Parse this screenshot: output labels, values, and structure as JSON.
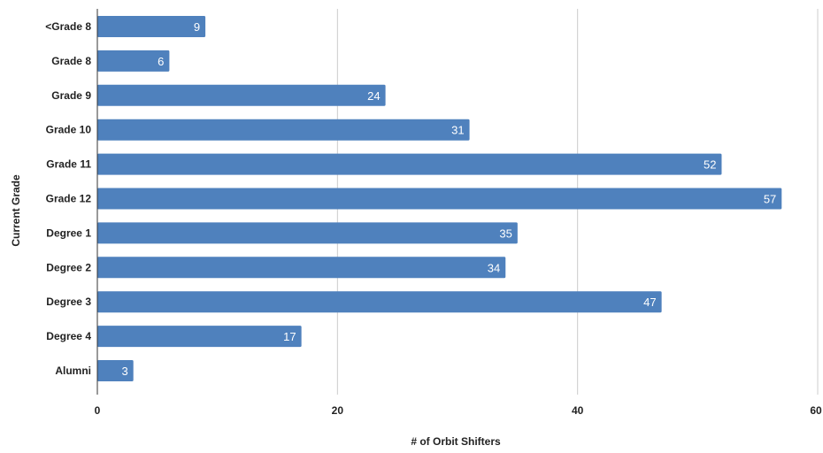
{
  "chart_data": {
    "type": "bar",
    "orientation": "horizontal",
    "categories": [
      "<Grade 8",
      "Grade 8",
      "Grade 9",
      "Grade 10",
      "Grade 11",
      "Grade 12",
      "Degree 1",
      "Degree 2",
      "Degree 3",
      "Degree 4",
      "Alumni"
    ],
    "values": [
      9,
      6,
      24,
      31,
      52,
      57,
      35,
      34,
      47,
      17,
      3
    ],
    "xlabel": "# of Orbit Shifters",
    "ylabel": "Current Grade",
    "xlim": [
      0,
      60
    ],
    "xticks": [
      0,
      20,
      40,
      60
    ],
    "grid": "vertical",
    "legend": "none",
    "data_labels": true,
    "bar_color": "#4f81bd"
  }
}
